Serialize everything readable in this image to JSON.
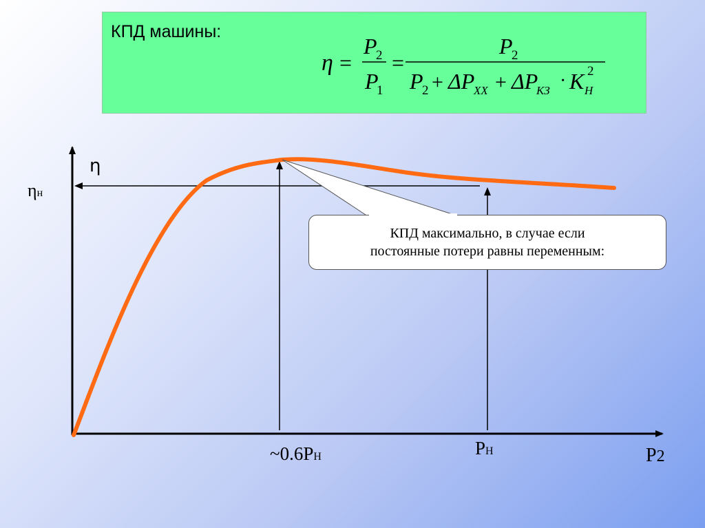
{
  "formula_box": {
    "title": "КПД машины:",
    "eta": "η",
    "equals": "=",
    "P": "P",
    "sub_1": "1",
    "sub_2": "2",
    "plus": "+",
    "delta": "ΔP",
    "sub_xx": "XX",
    "sub_kz": "КЗ",
    "dot": "·",
    "K": "K",
    "sub_h": "Н",
    "sup_2": "2",
    "background": "#66ff99"
  },
  "diagram": {
    "eta_axis_label": "η",
    "eta_rated_main": "η",
    "eta_rated_sub": "н",
    "x_axis_label_main": "P",
    "x_axis_label_sub": "2",
    "tick_opt_main": "~0.6P",
    "tick_opt_sub": "Н",
    "tick_rated_main": "P",
    "tick_rated_sub": "Н",
    "curve_color": "#ff6a13",
    "callout": {
      "line1": "КПД максимально, в случае если",
      "line2": "постоянные потери равны переменным:"
    }
  }
}
